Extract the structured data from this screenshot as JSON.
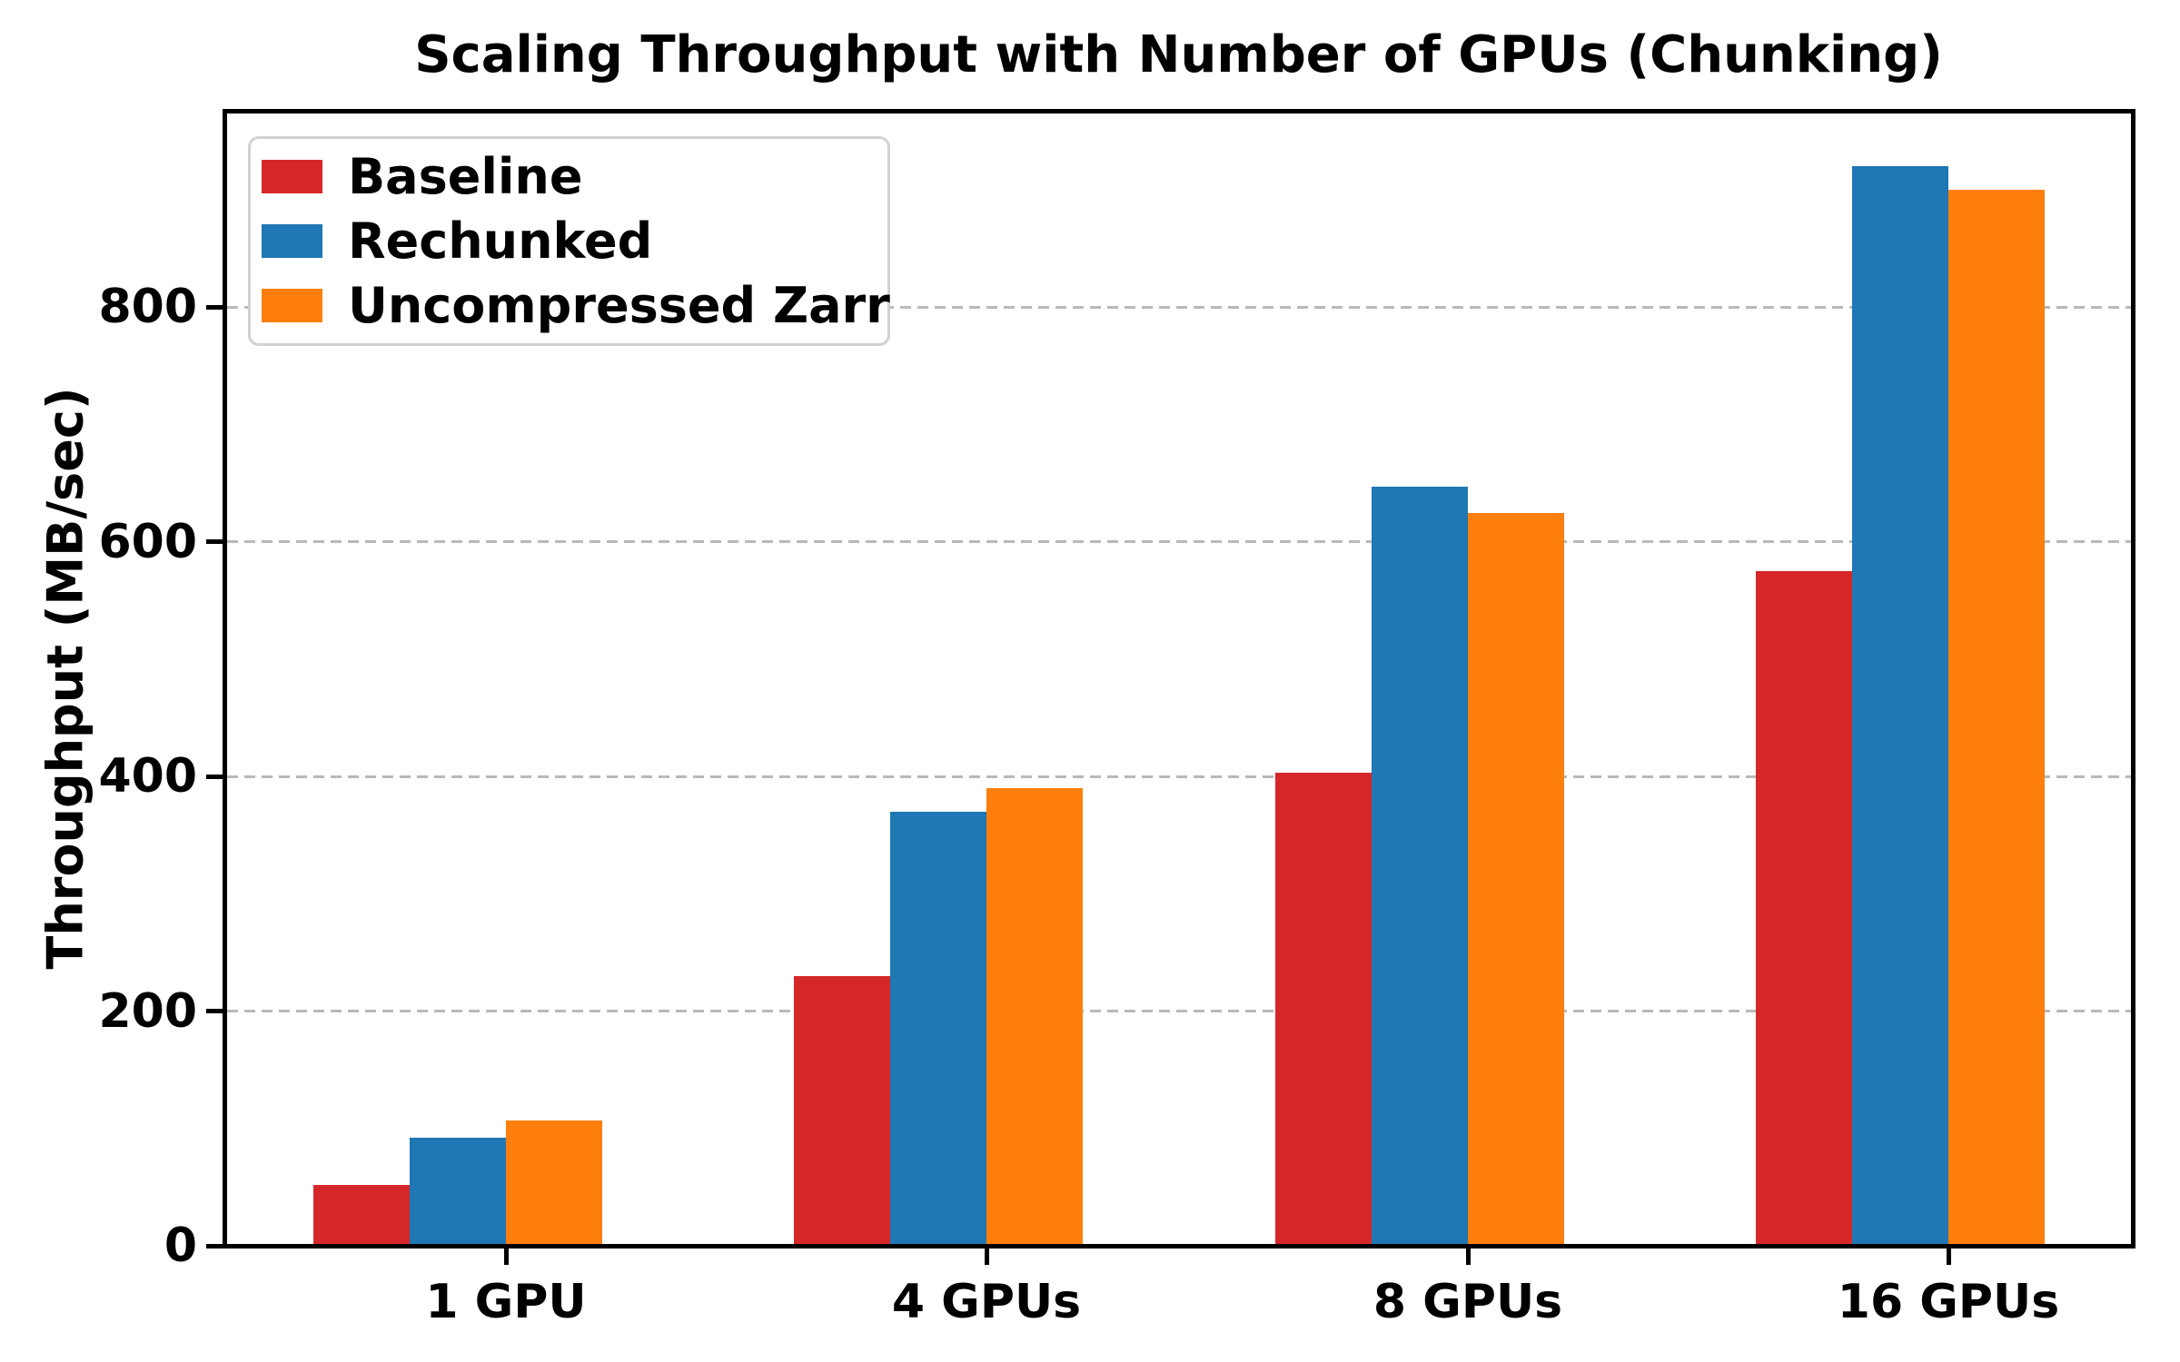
{
  "chart_data": {
    "type": "bar",
    "title": "Scaling Throughput with Number of GPUs (Chunking)",
    "xlabel": "",
    "ylabel": "Throughput (MB/sec)",
    "categories": [
      "1 GPU",
      "4 GPUs",
      "8 GPUs",
      "16 GPUs"
    ],
    "series": [
      {
        "name": "Baseline",
        "color": "#d62728",
        "values": [
          52,
          230,
          403,
          575
        ]
      },
      {
        "name": "Rechunked",
        "color": "#1f77b4",
        "values": [
          92,
          370,
          647,
          920
        ]
      },
      {
        "name": "Uncompressed Zarr",
        "color": "#ff7f0e",
        "values": [
          107,
          390,
          625,
          900
        ]
      }
    ],
    "yticks": [
      0,
      200,
      400,
      600,
      800
    ],
    "ylim": [
      0,
      967
    ],
    "grid": "horizontal-dashed",
    "grid_color": "#b9b9b9",
    "legend_position": "upper-left",
    "background_color": "#ffffff",
    "text_color": "#000000"
  }
}
